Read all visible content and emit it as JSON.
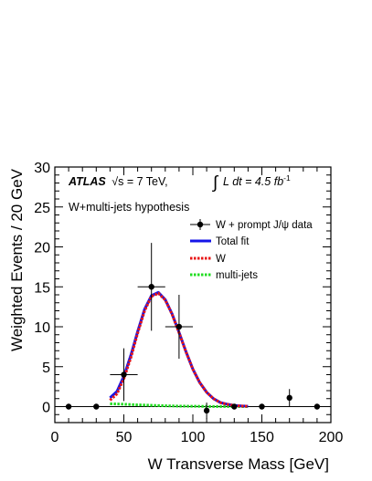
{
  "chart_data": {
    "type": "line",
    "xlabel": "W Transverse Mass [GeV]",
    "ylabel": "Weighted Events / 20 GeV",
    "xlim": [
      0,
      200
    ],
    "ylim": [
      -2,
      30
    ],
    "x_ticks": [
      0,
      50,
      100,
      150,
      200
    ],
    "y_ticks": [
      0,
      5,
      10,
      15,
      20,
      25,
      30
    ],
    "grid": false,
    "legend_position": "top-right",
    "annotations": {
      "experiment": "ATLAS",
      "energy": "√s = 7 TeV,",
      "lumi_l": "L dt = 4.5 fb",
      "lumi_exp": "-1",
      "hypothesis": "W+multi-jets hypothesis"
    },
    "series": [
      {
        "name": "W + prompt J/ψ data",
        "style": "points",
        "color": "#000000",
        "points": [
          {
            "x": 10,
            "y": 0,
            "err": 0,
            "xerr": 0
          },
          {
            "x": 30,
            "y": 0,
            "err": 0,
            "xerr": 0
          },
          {
            "x": 50,
            "y": 4.0,
            "err": 3.3,
            "xerr": 10
          },
          {
            "x": 70,
            "y": 15.0,
            "err": 5.5,
            "xerr": 10
          },
          {
            "x": 90,
            "y": 10.0,
            "err": 4.0,
            "xerr": 10
          },
          {
            "x": 110,
            "y": -0.5,
            "err": 1.0,
            "xerr": 0
          },
          {
            "x": 130,
            "y": 0,
            "err": 0,
            "xerr": 0
          },
          {
            "x": 150,
            "y": 0,
            "err": 0,
            "xerr": 0
          },
          {
            "x": 170,
            "y": 1.1,
            "err": 1.1,
            "xerr": 0
          },
          {
            "x": 190,
            "y": 0,
            "err": 0,
            "xerr": 0
          }
        ]
      },
      {
        "name": "Total fit",
        "style": "solid",
        "color": "#1515e8",
        "x": [
          40,
          45,
          50,
          55,
          60,
          65,
          70,
          75,
          80,
          85,
          90,
          95,
          100,
          105,
          110,
          115,
          120,
          125,
          130,
          135,
          140
        ],
        "y": [
          1.1,
          1.9,
          3.8,
          6.4,
          9.4,
          12.2,
          13.9,
          14.3,
          13.4,
          11.6,
          9.3,
          6.9,
          4.7,
          3.0,
          1.8,
          1.0,
          0.5,
          0.3,
          0.15,
          0.08,
          0.05
        ]
      },
      {
        "name": "W",
        "style": "dotted",
        "color": "#e81515",
        "x": [
          40,
          45,
          50,
          55,
          60,
          65,
          70,
          75,
          80,
          85,
          90,
          95,
          100,
          105,
          110,
          115,
          120,
          125,
          130,
          135,
          140
        ],
        "y": [
          0.8,
          1.6,
          3.5,
          6.1,
          9.2,
          12.0,
          13.8,
          14.2,
          13.35,
          11.55,
          9.25,
          6.88,
          4.69,
          2.99,
          1.79,
          0.99,
          0.49,
          0.29,
          0.14,
          0.07,
          0.04
        ]
      },
      {
        "name": "multi-jets",
        "style": "dotted",
        "color": "#22dd22",
        "x": [
          40,
          50,
          60,
          70,
          80,
          90,
          100,
          110,
          120,
          130,
          140
        ],
        "y": [
          0.35,
          0.3,
          0.22,
          0.16,
          0.1,
          0.06,
          0.04,
          0.02,
          0.01,
          0.01,
          0.005
        ]
      }
    ]
  }
}
